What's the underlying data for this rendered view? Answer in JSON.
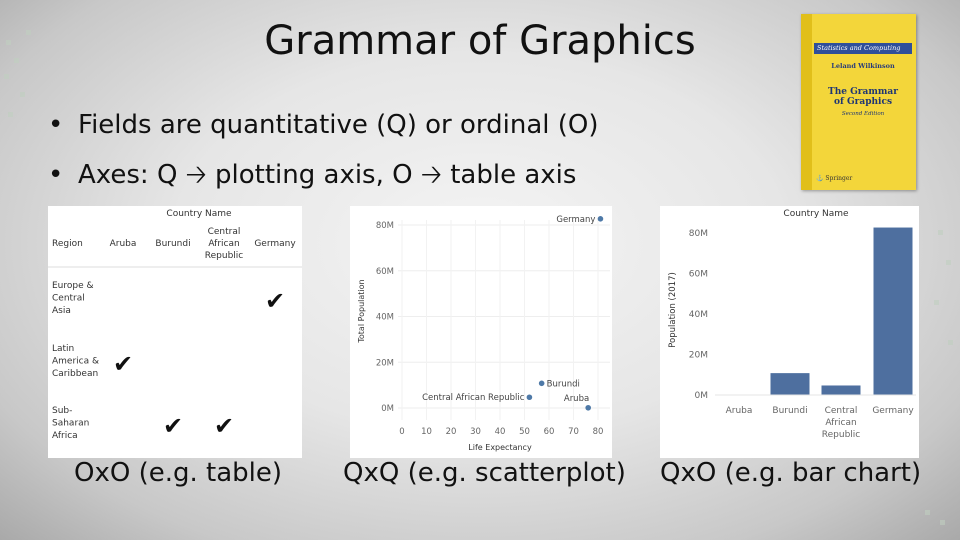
{
  "title": "Grammar of Graphics",
  "bullets": [
    {
      "marker": "•",
      "text": "Fields are quantitative (Q) or ordinal (O)"
    },
    {
      "marker": "•",
      "text": "Axes: Q 🡢 plotting axis, O 🡢 table axis"
    }
  ],
  "book": {
    "series": "Statistics and Computing",
    "author": "Leland Wilkinson",
    "title_lines": [
      "The Grammar",
      "of Graphics"
    ],
    "edition": "Second Edition",
    "publisher": "Springer",
    "colors": {
      "cover": "#f3d63a",
      "band": "#2f4f9a"
    }
  },
  "table_panel": {
    "caption": "OxO (e.g. table)",
    "column_group_header": "Country Name",
    "row_header": "Region",
    "columns": [
      [
        "Aruba"
      ],
      [
        "Burundi"
      ],
      [
        "Central",
        "African",
        "Republic"
      ],
      [
        "Germany"
      ]
    ],
    "rows": [
      {
        "label": [
          "Europe &",
          "Central",
          "Asia"
        ],
        "checks": [
          false,
          false,
          false,
          true
        ]
      },
      {
        "label": [
          "Latin",
          "America &",
          "Caribbean"
        ],
        "checks": [
          true,
          false,
          false,
          false
        ]
      },
      {
        "label": [
          "Sub-",
          "Saharan",
          "Africa"
        ],
        "checks": [
          false,
          true,
          true,
          false
        ]
      }
    ],
    "check_glyph": "✔"
  },
  "chart_data": [
    {
      "type": "scatter",
      "caption": "QxQ (e.g. scatterplot)",
      "xlabel": "Life Expectancy",
      "ylabel": "Total Population",
      "xlim": [
        0,
        80
      ],
      "ylim": [
        0,
        80
      ],
      "x_ticks": [
        "0",
        "10",
        "20",
        "30",
        "40",
        "50",
        "60",
        "70",
        "80"
      ],
      "x_tick_values": [
        0,
        10,
        20,
        30,
        40,
        50,
        60,
        70,
        80
      ],
      "y_ticks": [
        "0M",
        "20M",
        "40M",
        "60M",
        "80M"
      ],
      "y_tick_values": [
        0,
        20,
        40,
        60,
        80
      ],
      "grid": true,
      "points": [
        {
          "label": "Germany",
          "x": 81,
          "y": 82.7,
          "label_side": "left"
        },
        {
          "label": "Burundi",
          "x": 57,
          "y": 10.8,
          "label_side": "right"
        },
        {
          "label": "Central African Republic",
          "x": 52,
          "y": 4.7,
          "label_side": "left"
        },
        {
          "label": "Aruba",
          "x": 76,
          "y": 0.1,
          "label_side": "above-left"
        }
      ],
      "color": "#4e79a7"
    },
    {
      "type": "bar",
      "caption": "QxO (e.g. bar chart)",
      "title": "Country Name",
      "ylabel": "Population (2017)",
      "categories": [
        [
          "Aruba"
        ],
        [
          "Burundi"
        ],
        [
          "Central",
          "African",
          "Republic"
        ],
        [
          "Germany"
        ]
      ],
      "values": [
        0.1,
        10.8,
        4.7,
        82.7
      ],
      "ylim": [
        0,
        80
      ],
      "y_ticks": [
        "0M",
        "20M",
        "40M",
        "60M",
        "80M"
      ],
      "y_tick_values": [
        0,
        20,
        40,
        60,
        80
      ],
      "grid": false,
      "color": "#4e6f9f"
    }
  ]
}
